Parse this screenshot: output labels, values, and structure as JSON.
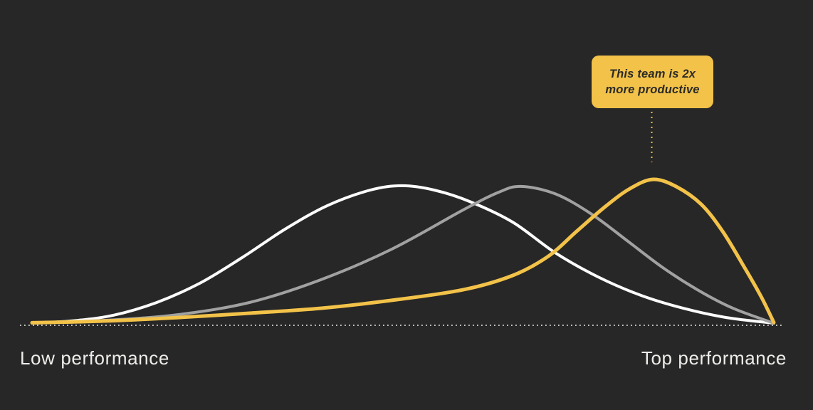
{
  "page": {
    "background_color": "#272727"
  },
  "colors": {
    "accent_yellow": "#F2C249",
    "curve_white": "#FCFCFC",
    "curve_gray": "#A1A1A1",
    "baseline_dots": "#C6C4C0",
    "label_text": "#EFEDEA",
    "callout_text": "#2B2A27"
  },
  "callout": {
    "line1": "This team is 2x",
    "line2": "more productive"
  },
  "chart_data": {
    "type": "line",
    "title": "",
    "description": "Three overlapping skewed bell-curve distributions of team performance; the yellow right-most curve is annotated as a team that is 2x more productive.",
    "x_axis": {
      "left_label": "Low performance",
      "right_label": "Top performance",
      "scale": "qualitative, low to top performance (0-100 normalized)",
      "ticks": []
    },
    "y_axis": {
      "label": "",
      "scale": "relative frequency, normalized 0-1 (no visible axis)",
      "ticks": []
    },
    "grid": false,
    "legend": false,
    "baseline": {
      "style": "dotted"
    },
    "annotation": {
      "text": "This team is 2x more productive",
      "attached_to": "peak of yellow curve",
      "connector": "vertical dotted line"
    },
    "series": [
      {
        "name": "distribution-white",
        "color_key": "curve_white",
        "stroke_width": 4,
        "peak_x": 50,
        "points": [
          [
            0,
            0.005
          ],
          [
            5.3,
            0.02
          ],
          [
            11,
            0.06
          ],
          [
            16.8,
            0.148
          ],
          [
            22.6,
            0.281
          ],
          [
            28.3,
            0.458
          ],
          [
            34.1,
            0.655
          ],
          [
            39.8,
            0.818
          ],
          [
            45.6,
            0.926
          ],
          [
            49.9,
            0.956
          ],
          [
            54.2,
            0.926
          ],
          [
            59,
            0.847
          ],
          [
            64.8,
            0.704
          ],
          [
            70.5,
            0.493
          ],
          [
            76.3,
            0.325
          ],
          [
            82.1,
            0.197
          ],
          [
            87.8,
            0.108
          ],
          [
            93.6,
            0.044
          ],
          [
            100,
            0.005
          ]
        ]
      },
      {
        "name": "distribution-gray",
        "color_key": "curve_gray",
        "stroke_width": 4,
        "peak_x": 66,
        "points": [
          [
            0,
            0.005
          ],
          [
            10.1,
            0.025
          ],
          [
            19.7,
            0.064
          ],
          [
            29.3,
            0.148
          ],
          [
            38.9,
            0.305
          ],
          [
            48.5,
            0.517
          ],
          [
            58.1,
            0.788
          ],
          [
            62.9,
            0.911
          ],
          [
            65.9,
            0.951
          ],
          [
            70.5,
            0.901
          ],
          [
            75.3,
            0.764
          ],
          [
            80.1,
            0.581
          ],
          [
            84.9,
            0.394
          ],
          [
            89.7,
            0.236
          ],
          [
            94.5,
            0.108
          ],
          [
            100,
            0.005
          ]
        ]
      },
      {
        "name": "distribution-yellow-2x-productive",
        "color_key": "accent_yellow",
        "stroke_width": 5,
        "peak_x": 84,
        "points": [
          [
            0,
            0.008
          ],
          [
            10.1,
            0.02
          ],
          [
            19.7,
            0.044
          ],
          [
            29.3,
            0.074
          ],
          [
            38.9,
            0.108
          ],
          [
            48.5,
            0.163
          ],
          [
            58.1,
            0.236
          ],
          [
            64.8,
            0.335
          ],
          [
            69.6,
            0.468
          ],
          [
            73.4,
            0.64
          ],
          [
            77.3,
            0.813
          ],
          [
            80.6,
            0.936
          ],
          [
            83.7,
            1.0
          ],
          [
            86.8,
            0.951
          ],
          [
            90.2,
            0.828
          ],
          [
            93.1,
            0.64
          ],
          [
            96,
            0.394
          ],
          [
            98.3,
            0.187
          ],
          [
            100,
            0.01
          ]
        ]
      }
    ]
  }
}
